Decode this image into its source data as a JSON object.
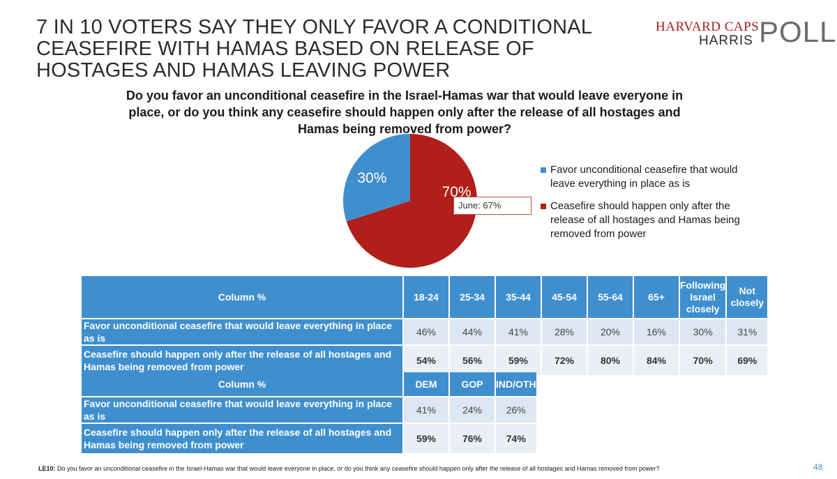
{
  "headline": "7 IN 10 VOTERS SAY THEY ONLY FAVOR A CONDITIONAL CEASEFIRE WITH HAMAS BASED ON RELEASE OF HOSTAGES AND HAMAS LEAVING POWER",
  "logo": {
    "top": "HARVARD CAPS",
    "harris": "HARRIS",
    "poll": "POLL"
  },
  "chart_data": {
    "type": "pie",
    "title": "Do you favor an unconditional ceasefire in the Israel-Hamas war that would leave everyone in place, or do you think any ceasefire should happen only after the release of all hostages and Hamas being removed from power?",
    "slices": [
      {
        "label": "Favor unconditional ceasefire that would leave everything in place as is",
        "value": 30,
        "display": "30%",
        "color": "#3f8fce"
      },
      {
        "label": "Ceasefire should happen only after the release of all hostages and Hamas being removed from power",
        "value": 70,
        "display": "70%",
        "color": "#b01f1a"
      }
    ],
    "annotation": "June: 67%",
    "legend_position": "right"
  },
  "table1": {
    "header": "Column %",
    "columns": [
      "18-24",
      "25-34",
      "35-44",
      "45-54",
      "55-64",
      "65+",
      "Following Israel closely",
      "Not closely"
    ],
    "rows": [
      {
        "label": "Favor unconditional ceasefire that would leave everything in place as is",
        "values": [
          "46%",
          "44%",
          "41%",
          "28%",
          "20%",
          "16%",
          "30%",
          "31%"
        ]
      },
      {
        "label": "Ceasefire should happen only after the release of all hostages and Hamas being removed from power",
        "values": [
          "54%",
          "56%",
          "59%",
          "72%",
          "80%",
          "84%",
          "70%",
          "69%"
        ]
      }
    ]
  },
  "table2": {
    "header": "Column %",
    "columns": [
      "DEM",
      "GOP",
      "IND/OTH"
    ],
    "rows": [
      {
        "label": "Favor unconditional ceasefire that would leave everything in place as is",
        "values": [
          "41%",
          "24%",
          "26%"
        ]
      },
      {
        "label": "Ceasefire should happen only after the release of all hostages and Hamas being removed from power",
        "values": [
          "59%",
          "76%",
          "74%"
        ]
      }
    ]
  },
  "footer": {
    "code": "LE10:",
    "text": "Do you favor an unconditional ceasefire in the Israel-Hamas war that would leave everyone in place, or do you think any ceasefire should happen only after the release of all hostages and Hamas removed from power?"
  },
  "page_number": "48"
}
